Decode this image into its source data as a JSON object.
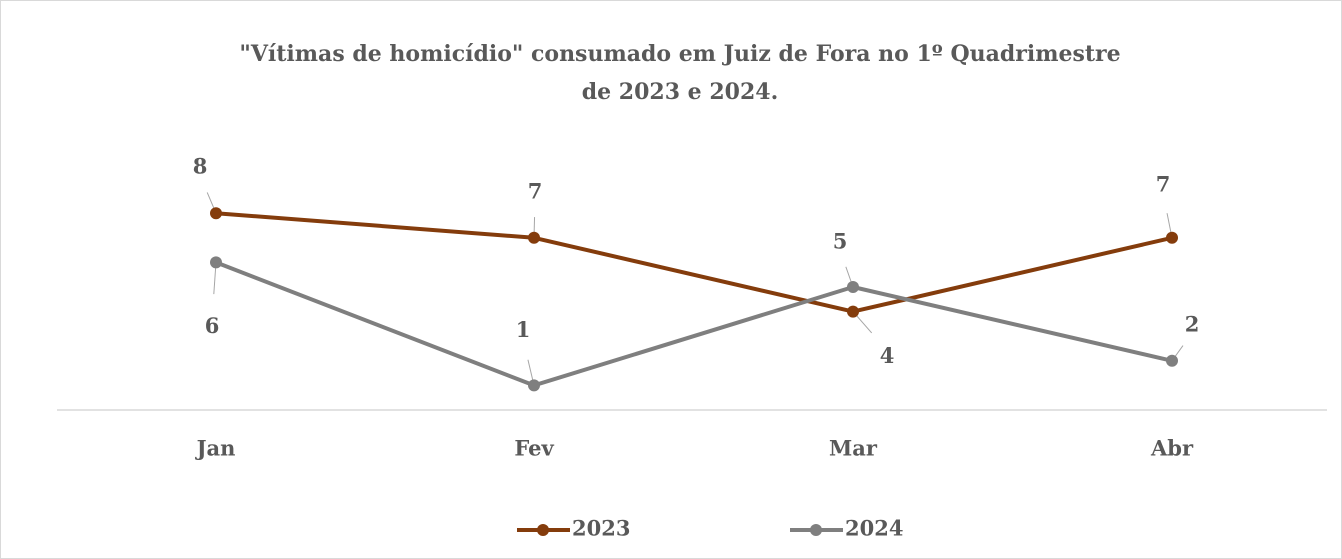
{
  "chart_data": {
    "type": "line",
    "title": [
      "\"Vítimas de homicídio\" consumado em Juiz de Fora no 1º Quadrimestre",
      "de 2023 e 2024."
    ],
    "categories": [
      "Jan",
      "Fev",
      "Mar",
      "Abr"
    ],
    "series": [
      {
        "name": "2023",
        "color": "#843c0c",
        "values": [
          8,
          7,
          4,
          7
        ]
      },
      {
        "name": "2024",
        "color": "#7f7f7f",
        "values": [
          6,
          1,
          5,
          2
        ]
      }
    ],
    "ylim": [
      0,
      10
    ],
    "legend": "bottom"
  }
}
